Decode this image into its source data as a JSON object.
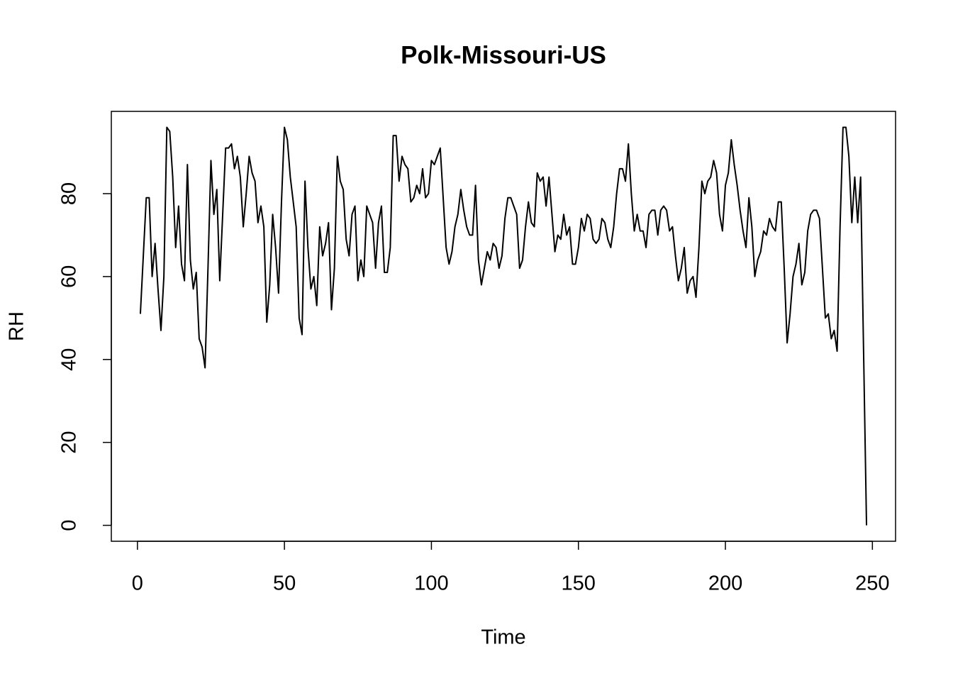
{
  "chart_data": {
    "type": "line",
    "title": "Polk-Missouri-US",
    "x_label": "Time",
    "y_label": "RH",
    "x": [
      1,
      2,
      3,
      4,
      5,
      6,
      7,
      8,
      9,
      10,
      11,
      12,
      13,
      14,
      15,
      16,
      17,
      18,
      19,
      20,
      21,
      22,
      23,
      24,
      25,
      26,
      27,
      28,
      29,
      30,
      31,
      32,
      33,
      34,
      35,
      36,
      37,
      38,
      39,
      40,
      41,
      42,
      43,
      44,
      45,
      46,
      47,
      48,
      49,
      50,
      51,
      52,
      53,
      54,
      55,
      56,
      57,
      58,
      59,
      60,
      61,
      62,
      63,
      64,
      65,
      66,
      67,
      68,
      69,
      70,
      71,
      72,
      73,
      74,
      75,
      76,
      77,
      78,
      79,
      80,
      81,
      82,
      83,
      84,
      85,
      86,
      87,
      88,
      89,
      90,
      91,
      92,
      93,
      94,
      95,
      96,
      97,
      98,
      99,
      100,
      101,
      102,
      103,
      104,
      105,
      106,
      107,
      108,
      109,
      110,
      111,
      112,
      113,
      114,
      115,
      116,
      117,
      118,
      119,
      120,
      121,
      122,
      123,
      124,
      125,
      126,
      127,
      128,
      129,
      130,
      131,
      132,
      133,
      134,
      135,
      136,
      137,
      138,
      139,
      140,
      141,
      142,
      143,
      144,
      145,
      146,
      147,
      148,
      149,
      150,
      151,
      152,
      153,
      154,
      155,
      156,
      157,
      158,
      159,
      160,
      161,
      162,
      163,
      164,
      165,
      166,
      167,
      168,
      169,
      170,
      171,
      172,
      173,
      174,
      175,
      176,
      177,
      178,
      179,
      180,
      181,
      182,
      183,
      184,
      185,
      186,
      187,
      188,
      189,
      190,
      191,
      192,
      193,
      194,
      195,
      196,
      197,
      198,
      199,
      200,
      201,
      202,
      203,
      204,
      205,
      206,
      207,
      208,
      209,
      210,
      211,
      212,
      213,
      214,
      215,
      216,
      217,
      218,
      219,
      220,
      221,
      222,
      223,
      224,
      225,
      226,
      227,
      228,
      229,
      230,
      231,
      232,
      233,
      234,
      235,
      236,
      237,
      238,
      239,
      240,
      241,
      242,
      243,
      244,
      245,
      246,
      247,
      248
    ],
    "values": [
      51,
      65,
      79,
      79,
      60,
      68,
      57,
      47,
      60,
      96,
      95,
      84,
      67,
      77,
      63,
      59,
      87,
      64,
      57,
      61,
      45,
      43,
      38,
      62,
      88,
      75,
      81,
      59,
      75,
      91,
      91,
      92,
      86,
      89,
      84,
      72,
      80,
      89,
      85,
      83,
      73,
      77,
      72,
      49,
      58,
      75,
      67,
      56,
      78,
      96,
      93,
      84,
      78,
      72,
      50,
      46,
      83,
      67,
      57,
      60,
      53,
      72,
      65,
      68,
      73,
      52,
      62,
      89,
      83,
      81,
      69,
      65,
      75,
      77,
      59,
      64,
      60,
      77,
      75,
      73,
      62,
      73,
      77,
      61,
      61,
      67,
      94,
      94,
      83,
      89,
      87,
      86,
      78,
      79,
      82,
      80,
      86,
      79,
      80,
      88,
      87,
      89,
      91,
      79,
      67,
      63,
      66,
      72,
      75,
      81,
      76,
      72,
      70,
      70,
      82,
      64,
      58,
      62,
      66,
      64,
      68,
      67,
      62,
      65,
      74,
      79,
      79,
      77,
      75,
      62,
      64,
      72,
      78,
      73,
      72,
      85,
      83,
      84,
      77,
      84,
      75,
      66,
      70,
      69,
      75,
      70,
      72,
      63,
      63,
      67,
      74,
      71,
      75,
      74,
      69,
      68,
      69,
      74,
      73,
      69,
      67,
      72,
      80,
      86,
      86,
      83,
      92,
      80,
      71,
      75,
      71,
      71,
      67,
      75,
      76,
      76,
      70,
      76,
      77,
      76,
      71,
      72,
      65,
      59,
      62,
      67,
      56,
      59,
      60,
      55,
      67,
      83,
      80,
      83,
      84,
      88,
      85,
      75,
      71,
      82,
      85,
      93,
      87,
      82,
      76,
      71,
      67,
      79,
      72,
      60,
      64,
      66,
      71,
      70,
      74,
      72,
      71,
      78,
      78,
      62,
      44,
      51,
      60,
      63,
      68,
      58,
      61,
      71,
      75,
      76,
      76,
      74,
      62,
      50,
      51,
      45,
      47,
      42,
      72,
      96,
      96,
      89,
      73,
      84,
      73,
      84,
      42,
      0
    ],
    "color": "#000000",
    "xlim": [
      -8.88,
      257.88
    ],
    "ylim": [
      -3.84,
      99.84
    ],
    "xticks": [
      0,
      50,
      100,
      150,
      200,
      250
    ],
    "yticks": [
      0,
      20,
      40,
      60,
      80
    ]
  }
}
